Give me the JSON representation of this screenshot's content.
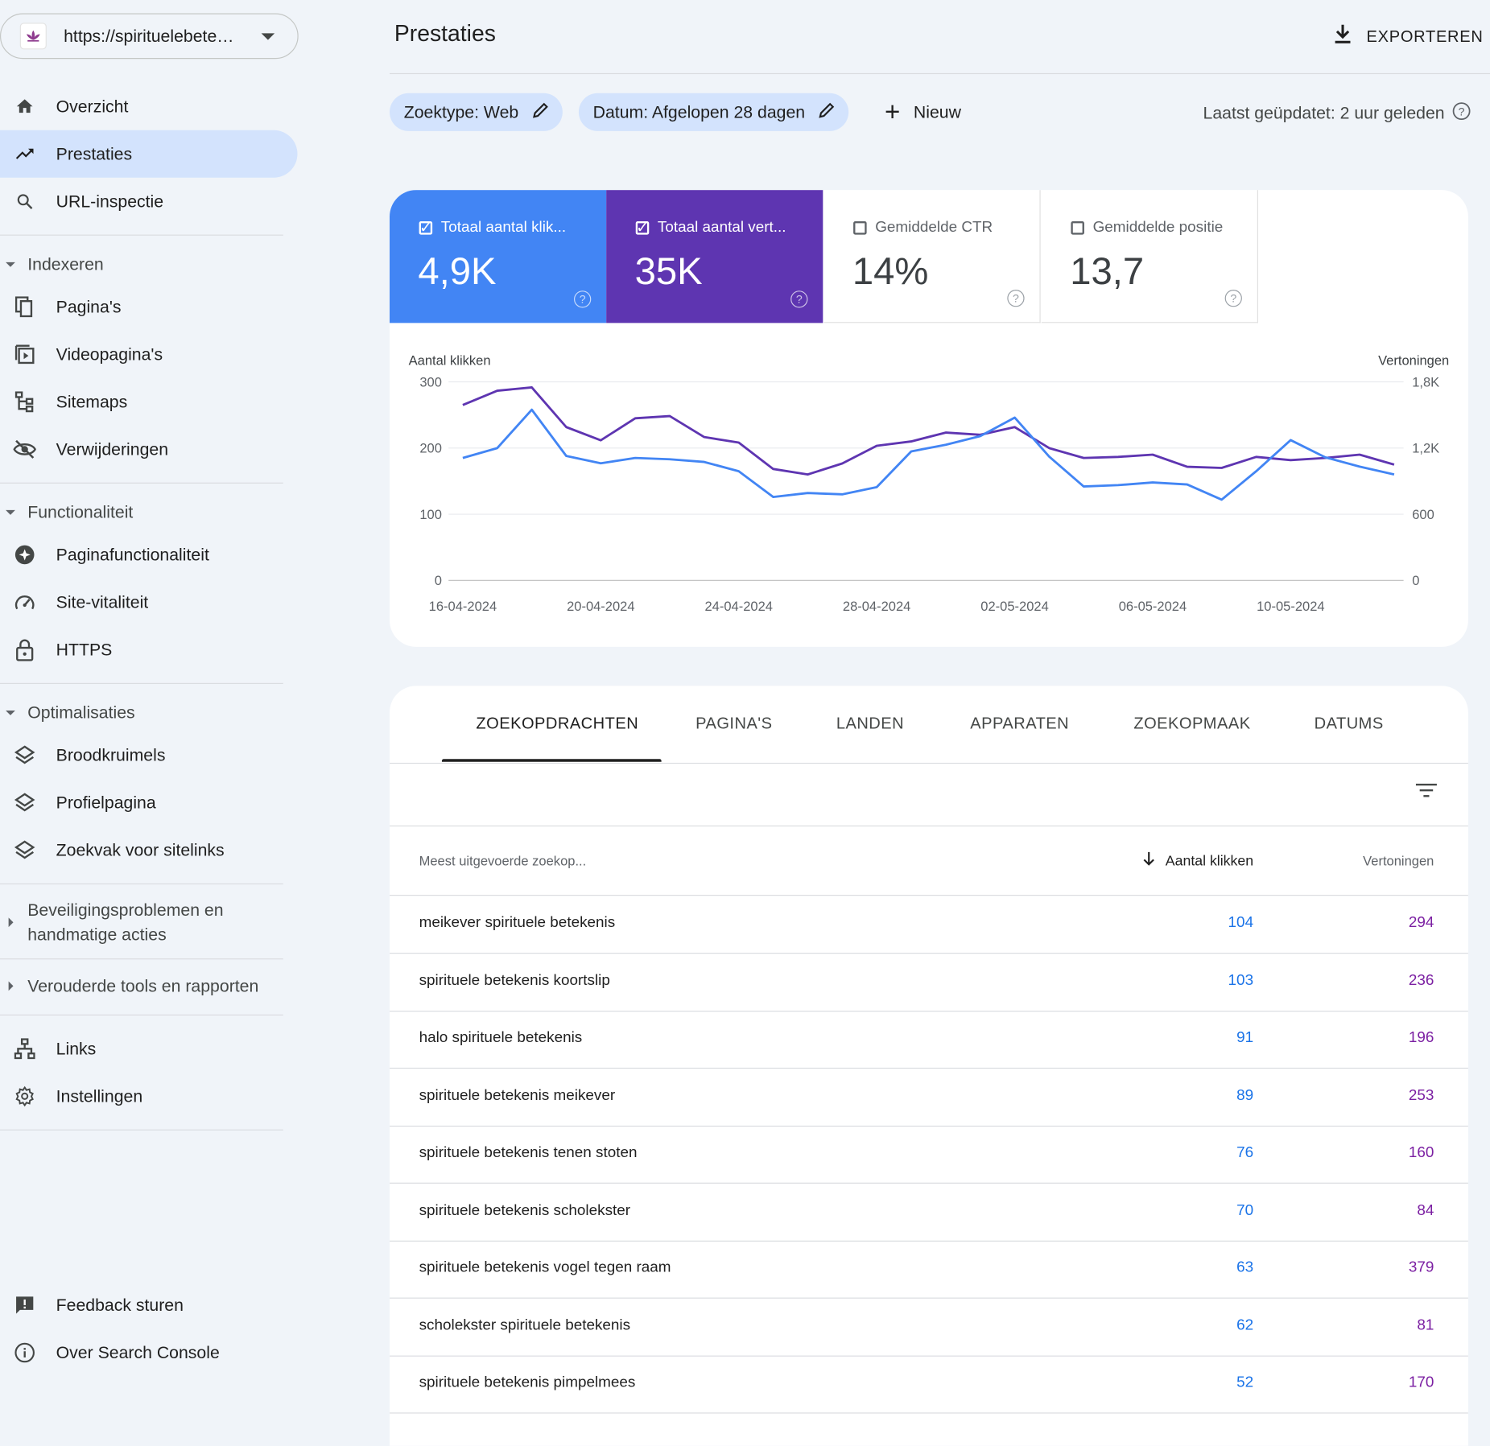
{
  "property": {
    "url": "https://spirituelebetekenis.nl"
  },
  "nav": {
    "top": [
      {
        "label": "Overzicht",
        "icon": "home-icon"
      },
      {
        "label": "Prestaties",
        "icon": "trending-up-icon",
        "active": true
      },
      {
        "label": "URL-inspectie",
        "icon": "search-icon"
      }
    ],
    "group_index": {
      "label": "Indexeren"
    },
    "index_items": [
      {
        "label": "Pagina's",
        "icon": "pages-icon"
      },
      {
        "label": "Videopagina's",
        "icon": "video-pages-icon"
      },
      {
        "label": "Sitemaps",
        "icon": "sitemap-icon"
      },
      {
        "label": "Verwijderingen",
        "icon": "eye-off-icon"
      }
    ],
    "group_experience": {
      "label": "Functionaliteit"
    },
    "experience_items": [
      {
        "label": "Paginafunctionaliteit",
        "icon": "plus-circle-icon"
      },
      {
        "label": "Site-vitaliteit",
        "icon": "speedometer-icon"
      },
      {
        "label": "HTTPS",
        "icon": "lock-icon"
      }
    ],
    "group_enhancements": {
      "label": "Optimalisaties"
    },
    "enhancement_items": [
      {
        "label": "Broodkruimels",
        "icon": "layers-icon"
      },
      {
        "label": "Profielpagina",
        "icon": "layers-icon"
      },
      {
        "label": "Zoekvak voor sitelinks",
        "icon": "layers-icon"
      }
    ],
    "group_security": {
      "label": "Beveiligingsproblemen en handmatige acties"
    },
    "group_legacy": {
      "label": "Verouderde tools en rapporten"
    },
    "bottom_items": [
      {
        "label": "Links",
        "icon": "links-icon"
      },
      {
        "label": "Instellingen",
        "icon": "gear-icon"
      }
    ],
    "footer_items": [
      {
        "label": "Feedback sturen",
        "icon": "feedback-icon"
      },
      {
        "label": "Over Search Console",
        "icon": "info-icon"
      }
    ]
  },
  "header": {
    "title": "Prestaties",
    "export_label": "EXPORTEREN"
  },
  "filters": {
    "search_type": "Zoektype: Web",
    "date": "Datum: Afgelopen 28 dagen",
    "new_label": "Nieuw",
    "last_updated": "Laatst geüpdatet: 2 uur geleden"
  },
  "metrics": [
    {
      "label": "Totaal aantal klik...",
      "value": "4,9K",
      "checked": true,
      "color": "#4285f4"
    },
    {
      "label": "Totaal aantal vert...",
      "value": "35K",
      "checked": true,
      "color": "#5e35b1"
    },
    {
      "label": "Gemiddelde CTR",
      "value": "14%",
      "checked": false
    },
    {
      "label": "Gemiddelde positie",
      "value": "13,7",
      "checked": false
    }
  ],
  "chart_data": {
    "type": "line",
    "y_left_title": "Aantal klikken",
    "y_right_title": "Vertoningen",
    "y_left_ticks": [
      "0",
      "100",
      "200",
      "300"
    ],
    "y_right_ticks": [
      "0",
      "600",
      "1,2K",
      "1,8K"
    ],
    "ylim_left": [
      0,
      300
    ],
    "ylim_right": [
      0,
      1800
    ],
    "x_tick_labels": [
      "16-04-2024",
      "20-04-2024",
      "24-04-2024",
      "28-04-2024",
      "02-05-2024",
      "06-05-2024",
      "10-05-2024"
    ],
    "x": [
      "16-04-2024",
      "17-04-2024",
      "18-04-2024",
      "19-04-2024",
      "20-04-2024",
      "21-04-2024",
      "22-04-2024",
      "23-04-2024",
      "24-04-2024",
      "25-04-2024",
      "26-04-2024",
      "27-04-2024",
      "28-04-2024",
      "29-04-2024",
      "30-04-2024",
      "01-05-2024",
      "02-05-2024",
      "03-05-2024",
      "04-05-2024",
      "05-05-2024",
      "06-05-2024",
      "07-05-2024",
      "08-05-2024",
      "09-05-2024",
      "10-05-2024",
      "11-05-2024",
      "12-05-2024",
      "13-05-2024"
    ],
    "series": [
      {
        "name": "Aantal klikken",
        "axis": "left",
        "color": "#4285f4",
        "values": [
          185,
          200,
          258,
          188,
          177,
          185,
          183,
          179,
          165,
          126,
          132,
          130,
          141,
          195,
          205,
          218,
          246,
          187,
          142,
          144,
          148,
          145,
          122,
          165,
          212,
          186,
          172,
          160
        ]
      },
      {
        "name": "Vertoningen",
        "axis": "right",
        "color": "#5e35b1",
        "values": [
          1590,
          1720,
          1750,
          1390,
          1270,
          1470,
          1490,
          1300,
          1250,
          1010,
          960,
          1060,
          1220,
          1260,
          1340,
          1320,
          1390,
          1200,
          1110,
          1120,
          1140,
          1030,
          1020,
          1120,
          1090,
          1110,
          1140,
          1050
        ]
      }
    ]
  },
  "tabs": [
    "ZOEKOPDRACHTEN",
    "PAGINA'S",
    "LANDEN",
    "APPARATEN",
    "ZOEKOPMAAK",
    "DATUMS"
  ],
  "table": {
    "col_query": "Meest uitgevoerde zoekop...",
    "col_clicks": "Aantal klikken",
    "col_impressions": "Vertoningen",
    "rows": [
      {
        "query": "meikever spirituele betekenis",
        "clicks": "104",
        "impressions": "294"
      },
      {
        "query": "spirituele betekenis koortslip",
        "clicks": "103",
        "impressions": "236"
      },
      {
        "query": "halo spirituele betekenis",
        "clicks": "91",
        "impressions": "196"
      },
      {
        "query": "spirituele betekenis meikever",
        "clicks": "89",
        "impressions": "253"
      },
      {
        "query": "spirituele betekenis tenen stoten",
        "clicks": "76",
        "impressions": "160"
      },
      {
        "query": "spirituele betekenis scholekster",
        "clicks": "70",
        "impressions": "84"
      },
      {
        "query": "spirituele betekenis vogel tegen raam",
        "clicks": "63",
        "impressions": "379"
      },
      {
        "query": "scholekster spirituele betekenis",
        "clicks": "62",
        "impressions": "81"
      },
      {
        "query": "spirituele betekenis pimpelmees",
        "clicks": "52",
        "impressions": "170"
      }
    ]
  }
}
